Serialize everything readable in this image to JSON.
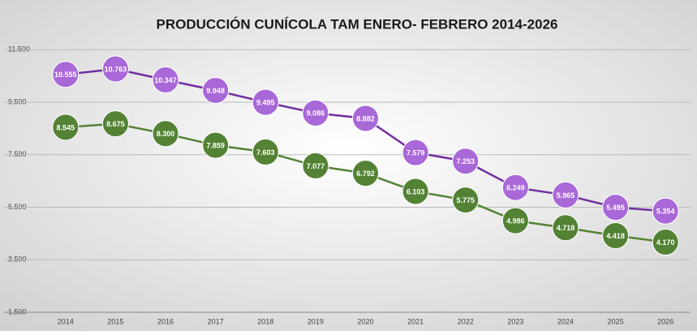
{
  "chart_data": {
    "type": "line",
    "title": "PRODUCCIÓN CUNÍCOLA TAM ENERO- FEBRERO 2014-2026",
    "categories": [
      "2014",
      "2015",
      "2016",
      "2017",
      "2018",
      "2019",
      "2020",
      "2021",
      "2022",
      "2023",
      "2024",
      "2025",
      "2026"
    ],
    "series": [
      {
        "color": "#7030a0",
        "marker_color": "#a868d8",
        "values": [
          10555,
          10763,
          10347,
          9948,
          9495,
          9086,
          8882,
          7579,
          7253,
          6249,
          5965,
          5495,
          5354
        ],
        "value_labels": [
          "10.555",
          "10.763",
          "10.347",
          "9.948",
          "9.495",
          "9.086",
          "8.882",
          "7.579",
          "7.253",
          "6.249",
          "5.965",
          "5.495",
          "5.354"
        ]
      },
      {
        "color": "#548235",
        "marker_color": "#548235",
        "values": [
          8545,
          8675,
          8300,
          7859,
          7603,
          7077,
          6792,
          6103,
          5775,
          4986,
          4718,
          4418,
          4170
        ],
        "value_labels": [
          "8.545",
          "8.675",
          "8.300",
          "7.859",
          "7.603",
          "7.077",
          "6.792",
          "6.103",
          "5.775",
          "4.986",
          "4.718",
          "4.418",
          "4.170"
        ]
      }
    ],
    "ylim": [
      1500,
      12000
    ],
    "yticks": [
      {
        "value": 1500,
        "label": "1.500"
      },
      {
        "value": 3500,
        "label": "3.500"
      },
      {
        "value": 5500,
        "label": "5.500"
      },
      {
        "value": 7500,
        "label": "7.500"
      },
      {
        "value": 9500,
        "label": "9.500"
      },
      {
        "value": 11500,
        "label": "11.500"
      }
    ],
    "grid": true
  }
}
